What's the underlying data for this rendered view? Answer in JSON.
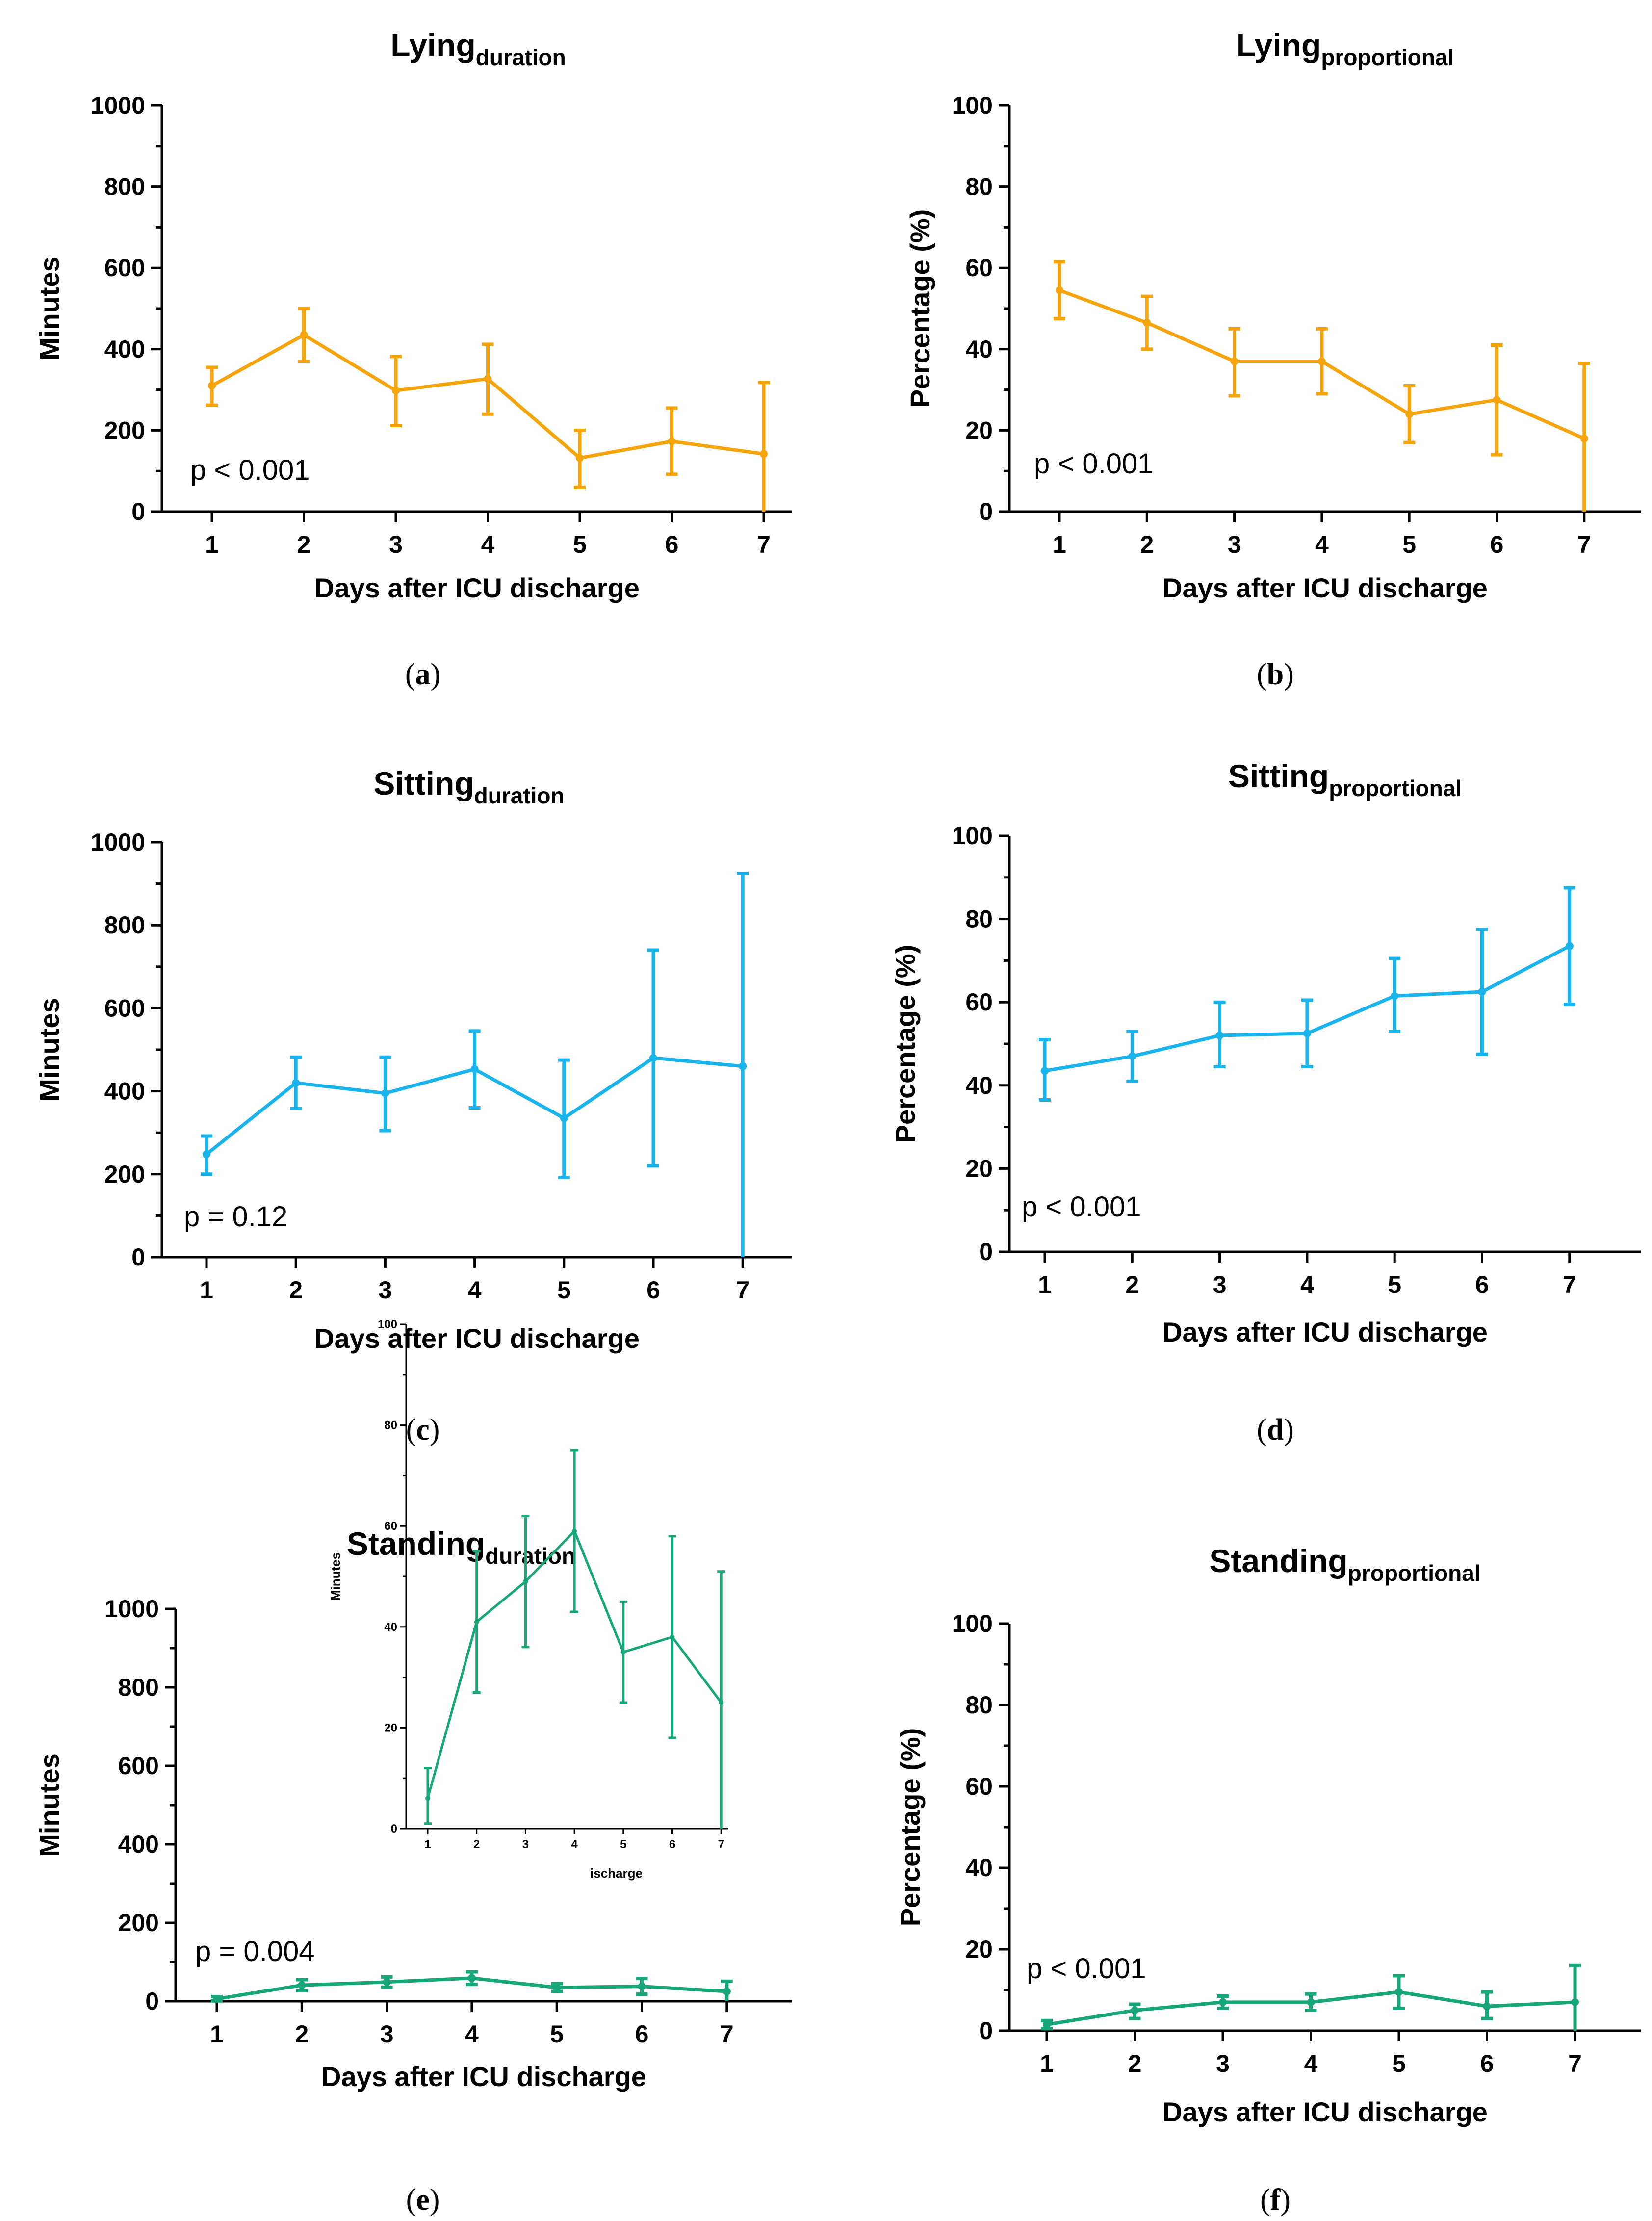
{
  "figure": {
    "x_label": "Days after ICU discharge",
    "minutes_label": "Minutes",
    "percent_label": "Percentage (%)",
    "colors": {
      "lying": "#F5A40C",
      "sitting": "#1AB4EC",
      "standing": "#17A57A"
    }
  },
  "chart_data": [
    {
      "id": "a",
      "type": "line",
      "title": "Lying",
      "title_sub": "duration",
      "caption": "a",
      "xlabel": "Days after ICU discharge",
      "ylabel": "Minutes",
      "color": "lying",
      "x": [
        1,
        2,
        3,
        4,
        5,
        6,
        7
      ],
      "yticks": [
        0,
        200,
        400,
        600,
        800,
        1000
      ],
      "ylim": [
        0,
        1000
      ],
      "values": [
        310,
        435,
        298,
        327,
        132,
        173,
        142
      ],
      "err_low": [
        262,
        370,
        212,
        240,
        60,
        92,
        0
      ],
      "err_high": [
        355,
        500,
        382,
        412,
        200,
        255,
        318
      ],
      "p_value": "p < 0.001"
    },
    {
      "id": "b",
      "type": "line",
      "title": "Lying",
      "title_sub": "proportional",
      "caption": "b",
      "xlabel": "Days after ICU discharge",
      "ylabel": "Percentage (%)",
      "color": "lying",
      "x": [
        1,
        2,
        3,
        4,
        5,
        6,
        7
      ],
      "yticks": [
        0,
        20,
        40,
        60,
        80,
        100
      ],
      "ylim": [
        0,
        100
      ],
      "values": [
        54.5,
        46.5,
        37,
        37,
        24,
        27.5,
        18
      ],
      "err_low": [
        47.5,
        40,
        28.5,
        29,
        17,
        14,
        0
      ],
      "err_high": [
        61.5,
        53,
        45,
        45,
        31,
        41,
        36.5
      ],
      "p_value": "p < 0.001"
    },
    {
      "id": "c",
      "type": "line",
      "title": "Sitting",
      "title_sub": "duration",
      "caption": "c",
      "xlabel": "Days after ICU discharge",
      "ylabel": "Minutes",
      "color": "sitting",
      "x": [
        1,
        2,
        3,
        4,
        5,
        6,
        7
      ],
      "yticks": [
        0,
        200,
        400,
        600,
        800,
        1000
      ],
      "ylim": [
        0,
        1000
      ],
      "values": [
        248,
        420,
        395,
        453,
        335,
        480,
        460
      ],
      "err_low": [
        200,
        358,
        305,
        360,
        192,
        220,
        0
      ],
      "err_high": [
        292,
        482,
        482,
        545,
        475,
        740,
        925
      ],
      "p_value": "p = 0.12"
    },
    {
      "id": "d",
      "type": "line",
      "title": "Sitting",
      "title_sub": "proportional",
      "caption": "d",
      "xlabel": "Days after ICU discharge",
      "ylabel": "Percentage (%)",
      "color": "sitting",
      "x": [
        1,
        2,
        3,
        4,
        5,
        6,
        7
      ],
      "yticks": [
        0,
        20,
        40,
        60,
        80,
        100
      ],
      "ylim": [
        0,
        100
      ],
      "values": [
        43.5,
        47,
        52,
        52.5,
        61.5,
        62.5,
        73.5
      ],
      "err_low": [
        36.5,
        41,
        44.5,
        44.5,
        53,
        47.5,
        59.5
      ],
      "err_high": [
        51,
        53,
        60,
        60.5,
        70.5,
        77.5,
        87.5
      ],
      "p_value": "p < 0.001"
    },
    {
      "id": "e",
      "type": "line",
      "title": "Standing",
      "title_sub": "duration",
      "caption": "e",
      "xlabel": "Days after ICU discharge",
      "ylabel": "Minutes",
      "color": "standing",
      "x": [
        1,
        2,
        3,
        4,
        5,
        6,
        7
      ],
      "yticks": [
        0,
        200,
        400,
        600,
        800,
        1000
      ],
      "ylim": [
        0,
        1000
      ],
      "values": [
        6,
        41,
        49,
        59,
        35,
        38,
        25
      ],
      "err_low": [
        1,
        27,
        36,
        43,
        25,
        18,
        0
      ],
      "err_high": [
        12,
        55,
        62,
        75,
        45,
        58,
        51
      ],
      "p_value": "p = 0.004",
      "inset": {
        "xlabel": "ischarge",
        "ylabel": "Minutes",
        "yticks": [
          0,
          20,
          40,
          60,
          80,
          100
        ],
        "ylim": [
          0,
          100
        ]
      }
    },
    {
      "id": "f",
      "type": "line",
      "title": "Standing",
      "title_sub": "proportional",
      "caption": "f",
      "xlabel": "Days after ICU discharge",
      "ylabel": "Percentage (%)",
      "color": "standing",
      "x": [
        1,
        2,
        3,
        4,
        5,
        6,
        7
      ],
      "yticks": [
        0,
        20,
        40,
        60,
        80,
        100
      ],
      "ylim": [
        0,
        100
      ],
      "values": [
        1.5,
        5,
        7,
        7,
        9.5,
        6,
        7
      ],
      "err_low": [
        0.5,
        3,
        5.5,
        5,
        5.5,
        3,
        0
      ],
      "err_high": [
        2.5,
        6.5,
        8.5,
        9,
        13.5,
        9.5,
        16
      ],
      "p_value": "p < 0.001"
    }
  ]
}
